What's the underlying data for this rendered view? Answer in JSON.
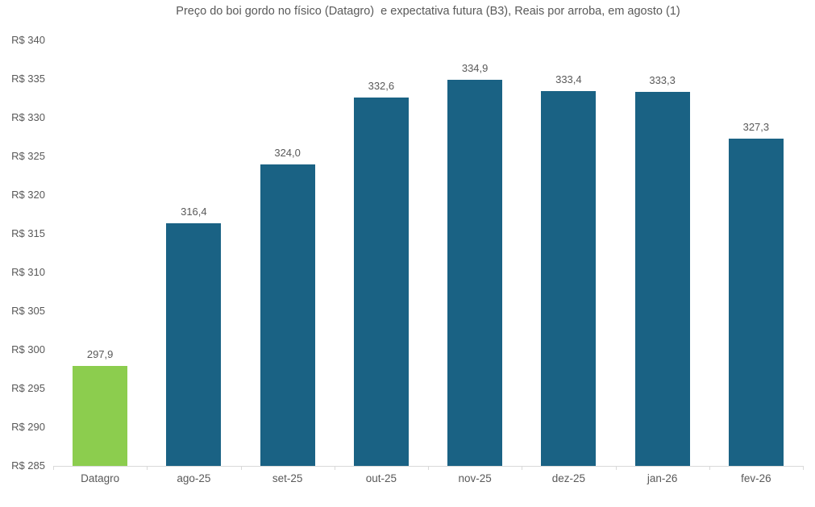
{
  "chart_data": {
    "type": "bar",
    "title": "Preço do boi gordo no físico (Datagro)  e expectativa futura (B3), Reais por arroba, em agosto (1)",
    "categories": [
      "Datagro",
      "ago-25",
      "set-25",
      "out-25",
      "nov-25",
      "dez-25",
      "jan-26",
      "fev-26"
    ],
    "values": [
      297.9,
      316.4,
      324.0,
      332.6,
      334.9,
      333.4,
      333.3,
      327.3
    ],
    "value_labels": [
      "297,9",
      "316,4",
      "324,0",
      "332,6",
      "334,9",
      "333,4",
      "333,3",
      "327,3"
    ],
    "bar_colors": [
      "#8CCD4E",
      "#1A6284",
      "#1A6284",
      "#1A6284",
      "#1A6284",
      "#1A6284",
      "#1A6284",
      "#1A6284"
    ],
    "series_colors": {
      "datagro_fisico": "#8CCD4E",
      "expectativa_futura_b3": "#1A6284"
    },
    "ylim": [
      285,
      340
    ],
    "ytick_step": 5,
    "ytick_labels": [
      "R$ 285",
      "R$ 290",
      "R$ 295",
      "R$ 300",
      "R$ 305",
      "R$ 310",
      "R$ 315",
      "R$ 320",
      "R$ 325",
      "R$ 330",
      "R$ 335",
      "R$ 340"
    ],
    "xlabel": "",
    "ylabel": "",
    "grid": false,
    "legend": "none",
    "text_color": "#595959",
    "axis_line_color": "#D9D9D9"
  }
}
